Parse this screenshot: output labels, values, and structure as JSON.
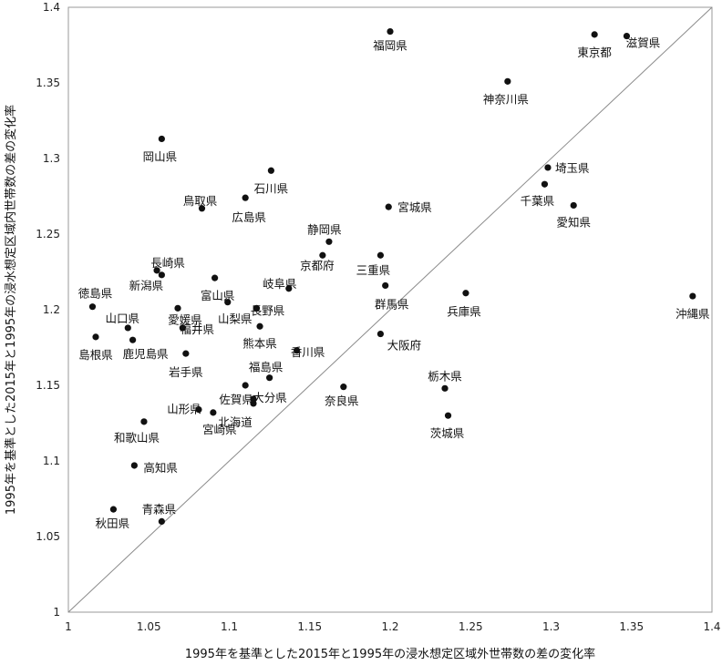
{
  "chart_data": {
    "type": "scatter",
    "xlabel": "1995年を基準とした2015年と1995年の浸水想定区域外世帯数の差の変化率",
    "ylabel": "1995年を基準とした2015年と1995年の浸水想定区域内世帯数の差の変化率",
    "xlim": [
      1,
      1.4
    ],
    "ylim": [
      1,
      1.4
    ],
    "x_ticks": [
      "1",
      "1.05",
      "1.1",
      "1.15",
      "1.2",
      "1.25",
      "1.3",
      "1.35",
      "1.4"
    ],
    "y_ticks": [
      "1",
      "1.05",
      "1.1",
      "1.15",
      "1.2",
      "1.25",
      "1.3",
      "1.35",
      "1.4"
    ],
    "grid": false,
    "reference_line": "y = x",
    "points": [
      {
        "label": "福岡県",
        "x": 1.2,
        "y": 1.384
      },
      {
        "label": "東京都",
        "x": 1.327,
        "y": 1.382
      },
      {
        "label": "滋賀県",
        "x": 1.347,
        "y": 1.381
      },
      {
        "label": "神奈川県",
        "x": 1.273,
        "y": 1.351
      },
      {
        "label": "岡山県",
        "x": 1.058,
        "y": 1.313
      },
      {
        "label": "石川県",
        "x": 1.126,
        "y": 1.292
      },
      {
        "label": "鳥取県",
        "x": 1.083,
        "y": 1.267
      },
      {
        "label": "広島県",
        "x": 1.11,
        "y": 1.274
      },
      {
        "label": "埼玉県",
        "x": 1.298,
        "y": 1.294
      },
      {
        "label": "千葉県",
        "x": 1.296,
        "y": 1.283
      },
      {
        "label": "愛知県",
        "x": 1.314,
        "y": 1.269
      },
      {
        "label": "宮城県",
        "x": 1.199,
        "y": 1.268
      },
      {
        "label": "静岡県",
        "x": 1.162,
        "y": 1.245
      },
      {
        "label": "京都府",
        "x": 1.158,
        "y": 1.236
      },
      {
        "label": "三重県",
        "x": 1.194,
        "y": 1.236
      },
      {
        "label": "長崎県",
        "x": 1.055,
        "y": 1.226
      },
      {
        "label": "新潟県",
        "x": 1.058,
        "y": 1.223
      },
      {
        "label": "富山県",
        "x": 1.091,
        "y": 1.221
      },
      {
        "label": "岐阜県",
        "x": 1.137,
        "y": 1.214
      },
      {
        "label": "群馬県",
        "x": 1.197,
        "y": 1.216
      },
      {
        "label": "兵庫県",
        "x": 1.247,
        "y": 1.211
      },
      {
        "label": "徳島県",
        "x": 1.015,
        "y": 1.202
      },
      {
        "label": "愛媛県",
        "x": 1.068,
        "y": 1.201
      },
      {
        "label": "山梨県",
        "x": 1.099,
        "y": 1.205
      },
      {
        "label": "長野県",
        "x": 1.117,
        "y": 1.201
      },
      {
        "label": "沖縄県",
        "x": 1.388,
        "y": 1.209
      },
      {
        "label": "山口県",
        "x": 1.037,
        "y": 1.188
      },
      {
        "label": "福井県",
        "x": 1.071,
        "y": 1.188
      },
      {
        "label": "熊本県",
        "x": 1.119,
        "y": 1.189
      },
      {
        "label": "島根県",
        "x": 1.017,
        "y": 1.182
      },
      {
        "label": "鹿児島県",
        "x": 1.04,
        "y": 1.18
      },
      {
        "label": "大阪府",
        "x": 1.194,
        "y": 1.184
      },
      {
        "label": "香川県",
        "x": 1.142,
        "y": 1.173
      },
      {
        "label": "岩手県",
        "x": 1.073,
        "y": 1.171
      },
      {
        "label": "福島県",
        "x": 1.125,
        "y": 1.155
      },
      {
        "label": "栃木県",
        "x": 1.234,
        "y": 1.148
      },
      {
        "label": "佐賀県",
        "x": 1.11,
        "y": 1.15
      },
      {
        "label": "大分県",
        "x": 1.115,
        "y": 1.141
      },
      {
        "label": "北海道",
        "x": 1.115,
        "y": 1.138
      },
      {
        "label": "奈良県",
        "x": 1.171,
        "y": 1.149
      },
      {
        "label": "山形県",
        "x": 1.081,
        "y": 1.134
      },
      {
        "label": "宮崎県",
        "x": 1.09,
        "y": 1.132
      },
      {
        "label": "茨城県",
        "x": 1.236,
        "y": 1.13
      },
      {
        "label": "和歌山県",
        "x": 1.047,
        "y": 1.126
      },
      {
        "label": "高知県",
        "x": 1.041,
        "y": 1.097
      },
      {
        "label": "秋田県",
        "x": 1.028,
        "y": 1.068
      },
      {
        "label": "青森県",
        "x": 1.058,
        "y": 1.06
      }
    ]
  }
}
